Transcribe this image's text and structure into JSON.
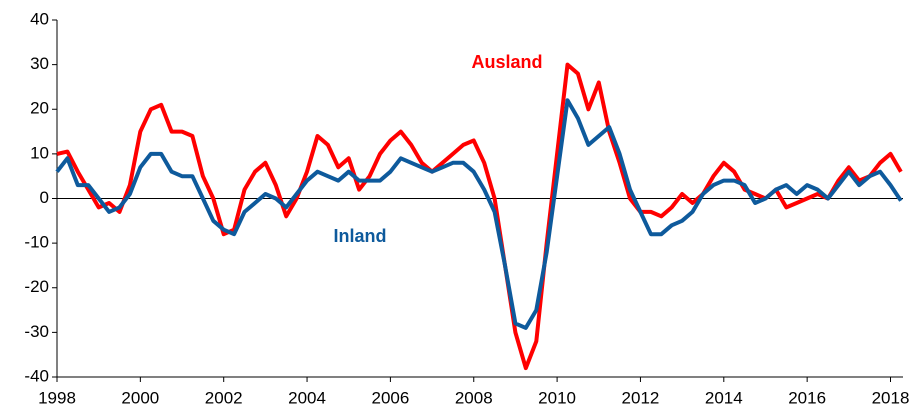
{
  "chart_data": {
    "type": "line",
    "x": [
      1998,
      1998.25,
      1998.5,
      1998.75,
      1999,
      1999.25,
      1999.5,
      1999.75,
      2000,
      2000.25,
      2000.5,
      2000.75,
      2001,
      2001.25,
      2001.5,
      2001.75,
      2002,
      2002.25,
      2002.5,
      2002.75,
      2003,
      2003.25,
      2003.5,
      2003.75,
      2004,
      2004.25,
      2004.5,
      2004.75,
      2005,
      2005.25,
      2005.5,
      2005.75,
      2006,
      2006.25,
      2006.5,
      2006.75,
      2007,
      2007.25,
      2007.5,
      2007.75,
      2008,
      2008.25,
      2008.5,
      2008.75,
      2009,
      2009.25,
      2009.5,
      2009.75,
      2010,
      2010.25,
      2010.5,
      2010.75,
      2011,
      2011.25,
      2011.5,
      2011.75,
      2012,
      2012.25,
      2012.5,
      2012.75,
      2013,
      2013.25,
      2013.5,
      2013.75,
      2014,
      2014.25,
      2014.5,
      2014.75,
      2015,
      2015.25,
      2015.5,
      2015.75,
      2016,
      2016.25,
      2016.5,
      2016.75,
      2017,
      2017.25,
      2017.5,
      2017.75,
      2018,
      2018.25
    ],
    "series": [
      {
        "name": "Ausland",
        "color": "#ff0000",
        "values": [
          10,
          10.5,
          6,
          2,
          -2,
          -1,
          -3,
          3,
          15,
          20,
          21,
          15,
          15,
          14,
          5,
          0,
          -8,
          -7,
          2,
          6,
          8,
          3,
          -4,
          0,
          6,
          14,
          12,
          7,
          9,
          2,
          5,
          10,
          13,
          15,
          12,
          8,
          6,
          8,
          10,
          12,
          13,
          8,
          0,
          -15,
          -30,
          -38,
          -32,
          -10,
          10,
          30,
          28,
          20,
          26,
          15,
          8,
          0,
          -3,
          -3,
          -4,
          -2,
          1,
          -1,
          1,
          5,
          8,
          6,
          2,
          1,
          0,
          2,
          -2,
          -1,
          0,
          1,
          0,
          4,
          7,
          4,
          5,
          8,
          10,
          6
        ]
      },
      {
        "name": "Inland",
        "color": "#0e5a9c",
        "values": [
          6,
          9,
          3,
          3,
          0,
          -3,
          -2,
          1,
          7,
          10,
          10,
          6,
          5,
          5,
          0,
          -5,
          -7,
          -8,
          -3,
          -1,
          1,
          0,
          -2,
          1,
          4,
          6,
          5,
          4,
          6,
          4,
          4,
          4,
          6,
          9,
          8,
          7,
          6,
          7,
          8,
          8,
          6,
          2,
          -3,
          -15,
          -28,
          -29,
          -25,
          -12,
          5,
          22,
          18,
          12,
          14,
          16,
          10,
          2,
          -3,
          -8,
          -8,
          -6,
          -5,
          -3,
          1,
          3,
          4,
          4,
          3,
          -1,
          0,
          2,
          3,
          1,
          3,
          2,
          0,
          3,
          6,
          3,
          5,
          6,
          3,
          -0.5
        ]
      }
    ],
    "xlim": [
      1998,
      2018.3
    ],
    "ylim": [
      -40,
      40
    ],
    "xticks": [
      1998,
      2000,
      2002,
      2004,
      2006,
      2008,
      2010,
      2012,
      2014,
      2016,
      2018
    ],
    "yticks": [
      -40,
      -30,
      -20,
      -10,
      0,
      10,
      20,
      30,
      40
    ]
  }
}
